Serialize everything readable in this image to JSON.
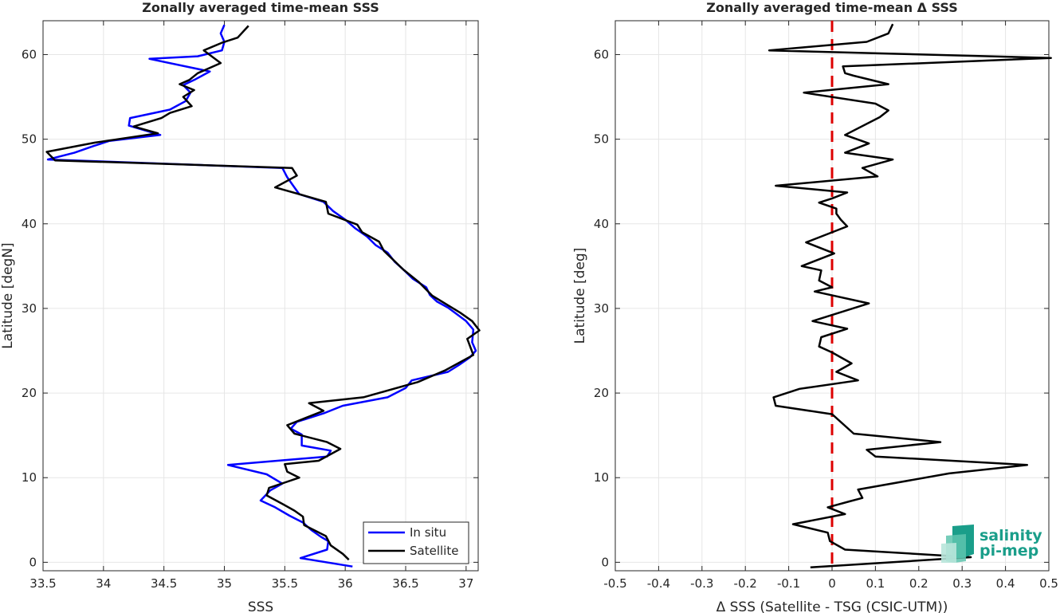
{
  "chart_data": [
    {
      "type": "line",
      "title": "Zonally averaged time-mean SSS",
      "xlabel": "SSS",
      "ylabel": "Latitude [degN]",
      "xlim": [
        33.5,
        37.1
      ],
      "ylim": [
        -1,
        64
      ],
      "xticks": [
        "33.5",
        "34",
        "34.5",
        "35",
        "35.5",
        "36",
        "36.5",
        "37"
      ],
      "yticks": [
        "0",
        "10",
        "20",
        "30",
        "40",
        "50",
        "60"
      ],
      "grid": true,
      "legend_position": "bottom-right",
      "series": [
        {
          "name": "In situ",
          "color": "#0000ff",
          "points": [
            [
              35.0,
              63.5
            ],
            [
              34.97,
              62.5
            ],
            [
              35.0,
              61.5
            ],
            [
              34.98,
              60.5
            ],
            [
              34.78,
              59.8
            ],
            [
              34.38,
              59.5
            ],
            [
              34.88,
              58.0
            ],
            [
              34.75,
              57.0
            ],
            [
              34.66,
              56.4
            ],
            [
              34.72,
              55.5
            ],
            [
              34.68,
              54.5
            ],
            [
              34.55,
              53.5
            ],
            [
              34.22,
              52.5
            ],
            [
              34.21,
              51.6
            ],
            [
              34.47,
              50.5
            ],
            [
              34.05,
              49.8
            ],
            [
              33.92,
              49.2
            ],
            [
              33.76,
              48.4
            ],
            [
              33.54,
              47.6
            ],
            [
              35.48,
              46.6
            ],
            [
              35.52,
              45.5
            ],
            [
              35.57,
              44.5
            ],
            [
              35.62,
              43.5
            ],
            [
              35.82,
              42.6
            ],
            [
              35.9,
              41.5
            ],
            [
              36.0,
              40.5
            ],
            [
              36.08,
              39.5
            ],
            [
              36.18,
              38.5
            ],
            [
              36.25,
              37.5
            ],
            [
              36.35,
              36.6
            ],
            [
              36.41,
              35.5
            ],
            [
              36.48,
              34.6
            ],
            [
              36.56,
              33.5
            ],
            [
              36.67,
              32.5
            ],
            [
              36.7,
              31.6
            ],
            [
              36.76,
              30.8
            ],
            [
              36.85,
              30.1
            ],
            [
              37.0,
              28.5
            ],
            [
              37.06,
              27.5
            ],
            [
              37.05,
              26.0
            ],
            [
              37.08,
              25.0
            ],
            [
              37.03,
              24.2
            ],
            [
              36.94,
              23.3
            ],
            [
              36.85,
              22.5
            ],
            [
              36.55,
              21.5
            ],
            [
              36.5,
              20.6
            ],
            [
              36.35,
              19.5
            ],
            [
              35.98,
              18.5
            ],
            [
              35.82,
              17.6
            ],
            [
              35.6,
              16.6
            ],
            [
              35.55,
              15.8
            ],
            [
              35.64,
              15.1
            ],
            [
              35.64,
              13.8
            ],
            [
              35.88,
              13.2
            ],
            [
              35.85,
              12.5
            ],
            [
              35.03,
              11.5
            ],
            [
              35.35,
              10.4
            ],
            [
              35.48,
              9.3
            ],
            [
              35.38,
              8.5
            ],
            [
              35.3,
              7.3
            ],
            [
              35.42,
              6.5
            ],
            [
              35.54,
              5.5
            ],
            [
              35.65,
              4.7
            ],
            [
              35.72,
              3.8
            ],
            [
              35.8,
              3.0
            ],
            [
              35.86,
              2.5
            ],
            [
              35.85,
              1.5
            ],
            [
              35.63,
              0.5
            ],
            [
              36.06,
              -0.5
            ]
          ]
        },
        {
          "name": "Satellite",
          "color": "#000000",
          "points": [
            [
              35.2,
              63.4
            ],
            [
              35.11,
              62.0
            ],
            [
              34.98,
              61.4
            ],
            [
              34.83,
              60.5
            ],
            [
              34.97,
              59.0
            ],
            [
              34.78,
              57.8
            ],
            [
              34.71,
              57.0
            ],
            [
              34.63,
              56.5
            ],
            [
              34.75,
              55.8
            ],
            [
              34.66,
              55.0
            ],
            [
              34.73,
              53.9
            ],
            [
              34.55,
              53.1
            ],
            [
              34.48,
              52.5
            ],
            [
              34.25,
              51.5
            ],
            [
              34.45,
              50.7
            ],
            [
              33.93,
              49.6
            ],
            [
              33.53,
              48.5
            ],
            [
              33.6,
              47.5
            ],
            [
              35.56,
              46.6
            ],
            [
              35.6,
              45.7
            ],
            [
              35.42,
              44.3
            ],
            [
              35.72,
              43.1
            ],
            [
              35.84,
              42.6
            ],
            [
              35.86,
              41.2
            ],
            [
              36.1,
              39.9
            ],
            [
              36.14,
              39.0
            ],
            [
              36.28,
              37.9
            ],
            [
              36.32,
              36.8
            ],
            [
              36.48,
              34.6
            ],
            [
              36.61,
              33.1
            ],
            [
              36.72,
              31.5
            ],
            [
              36.95,
              29.5
            ],
            [
              37.05,
              28.5
            ],
            [
              37.11,
              27.4
            ],
            [
              37.01,
              26.4
            ],
            [
              37.06,
              24.5
            ],
            [
              36.83,
              22.7
            ],
            [
              36.6,
              21.3
            ],
            [
              36.15,
              19.5
            ],
            [
              35.7,
              18.8
            ],
            [
              35.82,
              17.9
            ],
            [
              35.52,
              16.2
            ],
            [
              35.58,
              15.2
            ],
            [
              35.85,
              14.2
            ],
            [
              35.96,
              13.4
            ],
            [
              35.78,
              12.0
            ],
            [
              35.5,
              11.6
            ],
            [
              35.52,
              10.7
            ],
            [
              35.62,
              10.0
            ],
            [
              35.37,
              8.8
            ],
            [
              35.35,
              7.9
            ],
            [
              35.48,
              6.9
            ],
            [
              35.58,
              6.1
            ],
            [
              35.65,
              5.4
            ],
            [
              35.66,
              4.4
            ],
            [
              35.84,
              3.1
            ],
            [
              35.88,
              2.0
            ],
            [
              35.98,
              1.0
            ],
            [
              36.03,
              0.3
            ]
          ]
        }
      ]
    },
    {
      "type": "line",
      "title": "Zonally averaged time-mean Δ SSS",
      "xlabel": "Δ SSS (Satellite - TSG (CSIC-UTM))",
      "ylabel": "Latitude [deg]",
      "xlim": [
        -0.5,
        0.5
      ],
      "ylim": [
        -1,
        64
      ],
      "xticks": [
        "-0.5",
        "-0.4",
        "-0.3",
        "-0.2",
        "-0.1",
        "0",
        "0.1",
        "0.2",
        "0.3",
        "0.4",
        "0.5"
      ],
      "yticks": [
        "0",
        "10",
        "20",
        "30",
        "40",
        "50",
        "60"
      ],
      "grid": true,
      "reference_line": {
        "x": 0,
        "color": "#dd0000",
        "style": "dashed"
      },
      "series": [
        {
          "color": "#000000",
          "points": [
            [
              0.14,
              63.6
            ],
            [
              0.13,
              62.5
            ],
            [
              0.08,
              61.5
            ],
            [
              -0.145,
              60.5
            ],
            [
              0.505,
              59.6
            ],
            [
              0.025,
              58.6
            ],
            [
              0.03,
              57.8
            ],
            [
              0.05,
              57.5
            ],
            [
              0.13,
              56.5
            ],
            [
              -0.065,
              55.5
            ],
            [
              0.1,
              54.2
            ],
            [
              0.13,
              53.4
            ],
            [
              0.11,
              52.6
            ],
            [
              0.03,
              50.5
            ],
            [
              0.085,
              49.5
            ],
            [
              0.03,
              48.4
            ],
            [
              0.14,
              47.6
            ],
            [
              0.07,
              46.6
            ],
            [
              0.105,
              45.6
            ],
            [
              -0.13,
              44.5
            ],
            [
              0.035,
              43.7
            ],
            [
              0.0,
              43.0
            ],
            [
              -0.03,
              42.5
            ],
            [
              0.01,
              41.8
            ],
            [
              0.01,
              41.2
            ],
            [
              0.02,
              40.5
            ],
            [
              0.035,
              39.7
            ],
            [
              -0.06,
              37.8
            ],
            [
              0.005,
              36.5
            ],
            [
              -0.07,
              35.0
            ],
            [
              -0.025,
              34.5
            ],
            [
              -0.03,
              33.3
            ],
            [
              0.0,
              32.5
            ],
            [
              -0.04,
              32.0
            ],
            [
              0.085,
              30.6
            ],
            [
              -0.045,
              28.5
            ],
            [
              0.035,
              27.6
            ],
            [
              -0.025,
              26.6
            ],
            [
              -0.03,
              25.5
            ],
            [
              0.0,
              24.8
            ],
            [
              0.045,
              23.5
            ],
            [
              0.01,
              22.5
            ],
            [
              0.06,
              21.5
            ],
            [
              -0.075,
              20.5
            ],
            [
              -0.135,
              19.5
            ],
            [
              -0.13,
              18.5
            ],
            [
              0.0,
              17.5
            ],
            [
              0.05,
              15.2
            ],
            [
              0.25,
              14.2
            ],
            [
              0.08,
              13.3
            ],
            [
              0.1,
              12.5
            ],
            [
              0.45,
              11.5
            ],
            [
              0.27,
              10.5
            ],
            [
              0.06,
              8.6
            ],
            [
              0.07,
              7.6
            ],
            [
              0.04,
              7.2
            ],
            [
              -0.01,
              6.5
            ],
            [
              0.03,
              5.7
            ],
            [
              -0.09,
              4.5
            ],
            [
              -0.01,
              3.5
            ],
            [
              -0.005,
              2.5
            ],
            [
              0.03,
              1.5
            ],
            [
              0.32,
              0.6
            ],
            [
              -0.05,
              -0.6
            ]
          ]
        }
      ]
    }
  ],
  "logo": {
    "line1": "salinity",
    "line2": "pi-mep"
  }
}
